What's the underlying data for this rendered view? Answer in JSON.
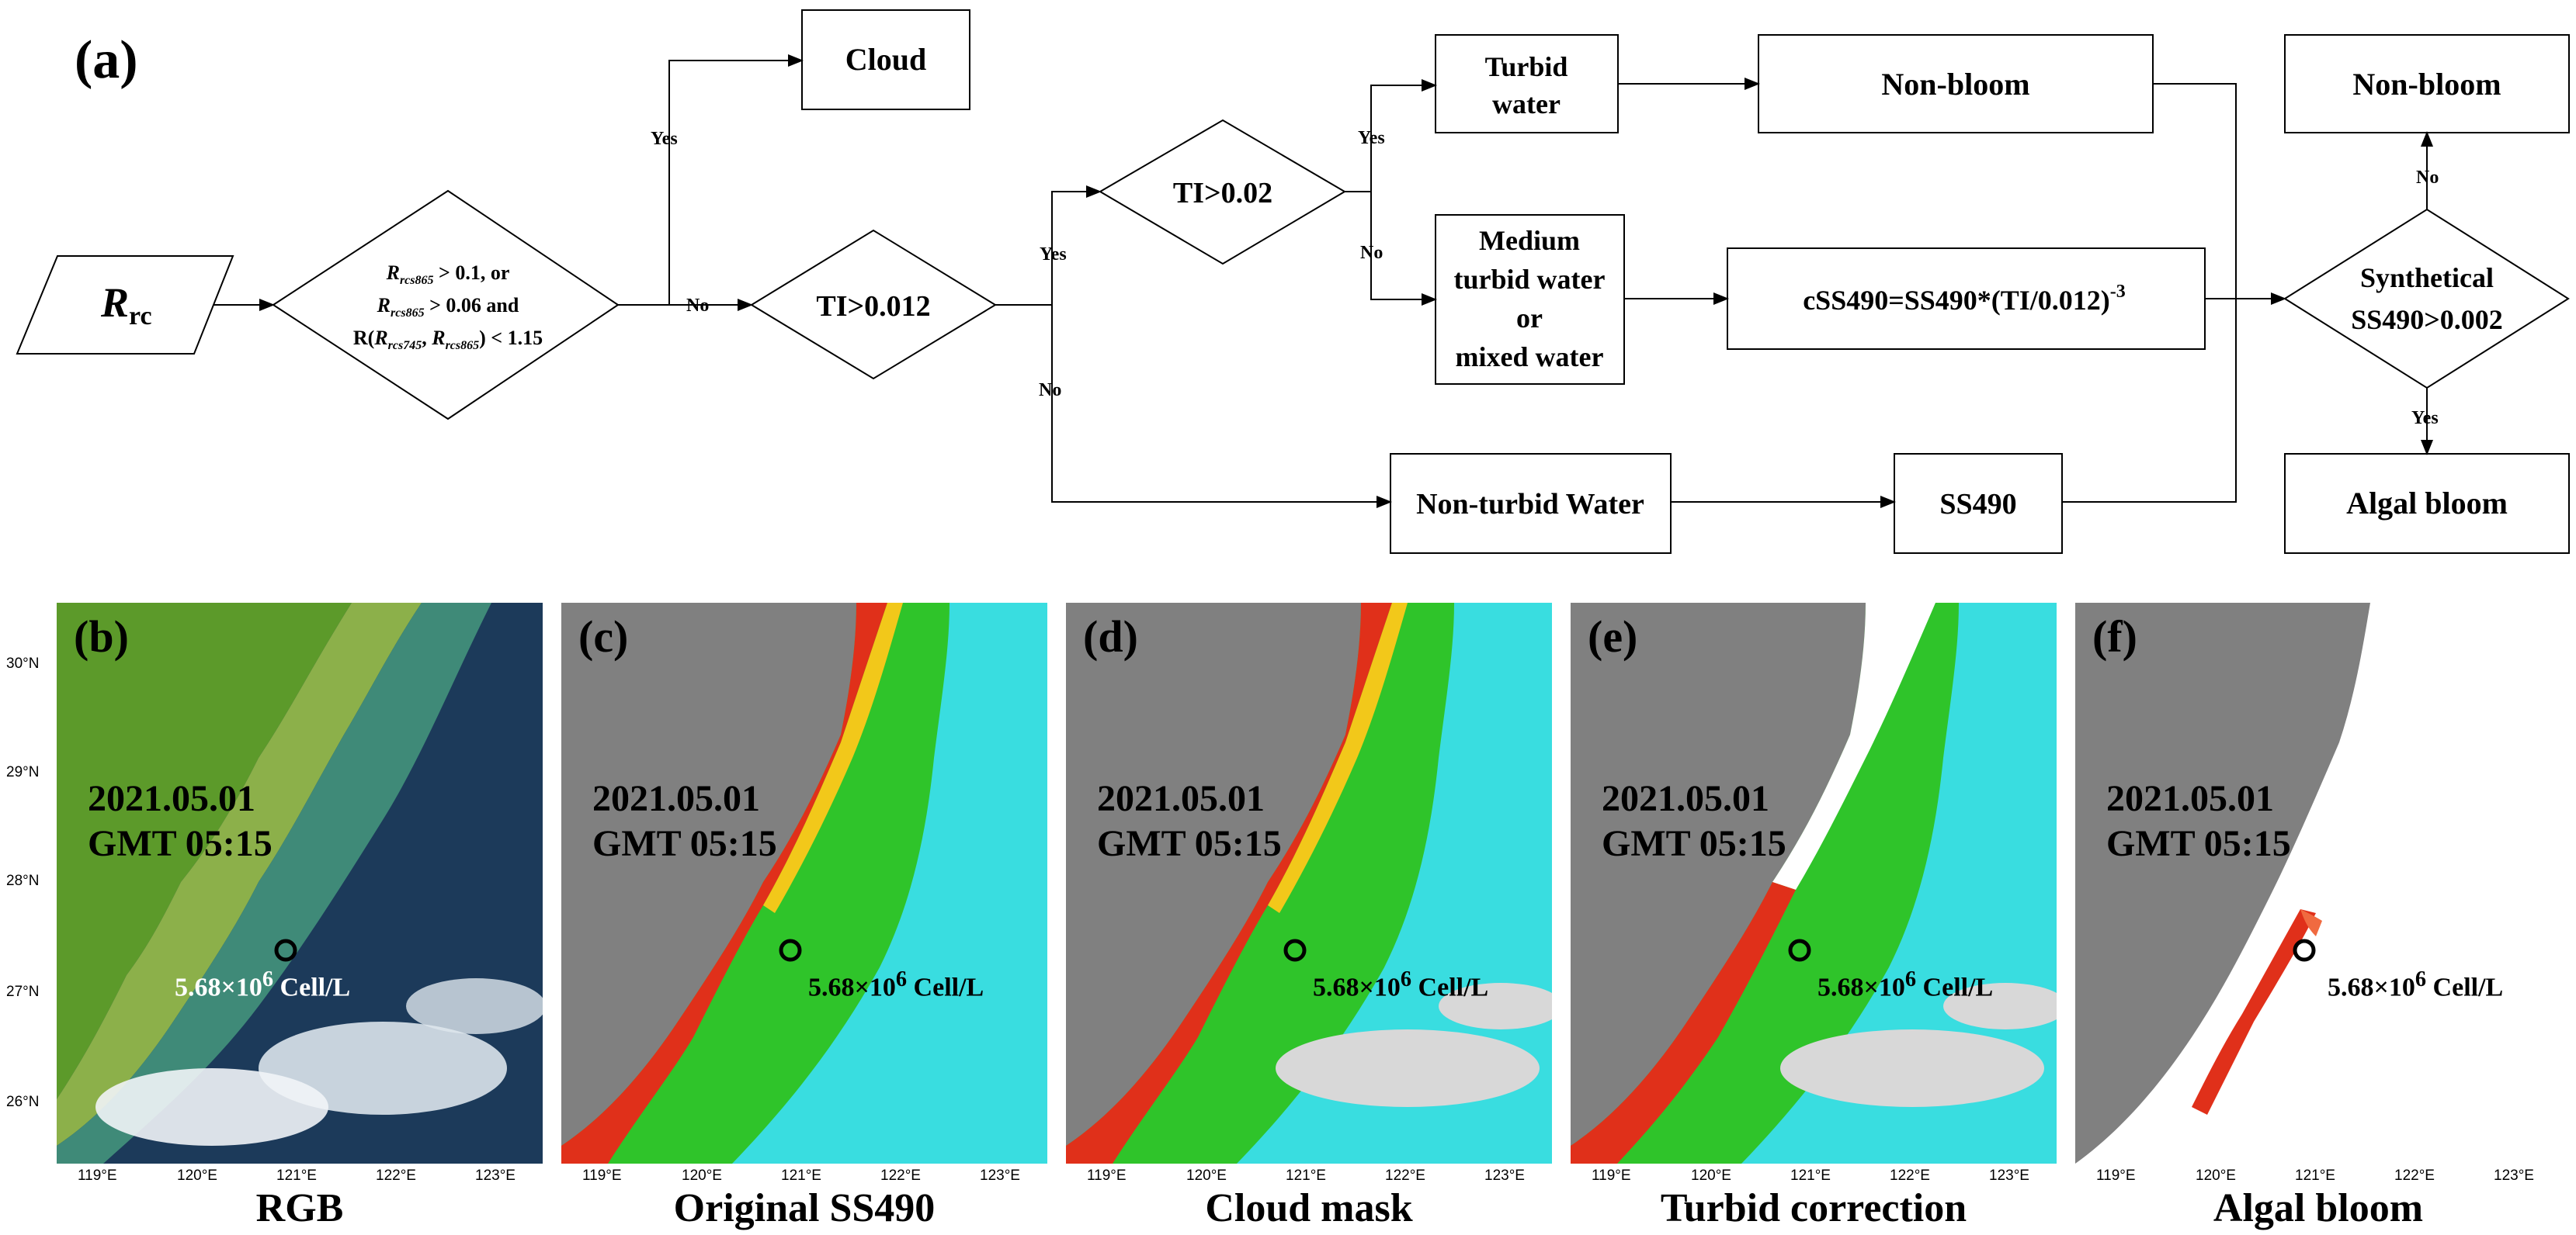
{
  "flowchart": {
    "label": "(a)",
    "input": "R",
    "input_sub": "rc",
    "decision_cloud": {
      "line1": "R",
      "line1_sub": "rcs865",
      "line1_rest": " > 0.1, or",
      "line2": "R",
      "line2_sub": "rcs865",
      "line2_rest": " > 0.06 and",
      "line3a": "R(",
      "line3_r1": "R",
      "line3_sub1": "rcs745",
      "line3_mid": ", ",
      "line3_r2": "R",
      "line3_sub2": "rcs865",
      "line3_rest": ") < 1.15"
    },
    "cloud": "Cloud",
    "ti_012": "TI>0.012",
    "ti_002": "TI>0.02",
    "turbid_water_1": "Turbid",
    "turbid_water_2": "water",
    "medium_1": "Medium",
    "medium_2": "turbid water",
    "medium_3": "or",
    "medium_4": "mixed water",
    "non_turbid": "Non-turbid Water",
    "nonbloom_mid": "Non-bloom",
    "correction": "cSS490=SS490*(TI/0.012)",
    "correction_sup": "-3",
    "ss490": "SS490",
    "synthetical_1": "Synthetical",
    "synthetical_2": "SS490>0.002",
    "nonbloom_right": "Non-bloom",
    "algal_bloom": "Algal bloom",
    "labels": {
      "yes": "Yes",
      "no": "No"
    }
  },
  "panels": [
    {
      "letter": "(b)",
      "caption": "RGB"
    },
    {
      "letter": "(c)",
      "caption": "Original SS490"
    },
    {
      "letter": "(d)",
      "caption": "Cloud mask"
    },
    {
      "letter": "(e)",
      "caption": "Turbid correction"
    },
    {
      "letter": "(f)",
      "caption": "Algal bloom"
    }
  ],
  "annotation": {
    "date": "2021.05.01",
    "time": "GMT 05:15",
    "concentration": "5.68×10",
    "concentration_sup": "6",
    "concentration_unit": " Cell/L"
  },
  "axes": {
    "lat_ticks": [
      "30°N",
      "29°N",
      "28°N",
      "27°N",
      "26°N"
    ],
    "lon_ticks": [
      "119°E",
      "120°E",
      "121°E",
      "122°E",
      "123°E"
    ]
  },
  "colors": {
    "land": "#808080",
    "rgb_land": "#5c9a2a",
    "rgb_sea": "#1c3a5a",
    "bloom_red": "#e0301a",
    "index_green": "#2fc42a",
    "index_cyan": "#39dde0",
    "cloud": "#d8d8d8"
  }
}
